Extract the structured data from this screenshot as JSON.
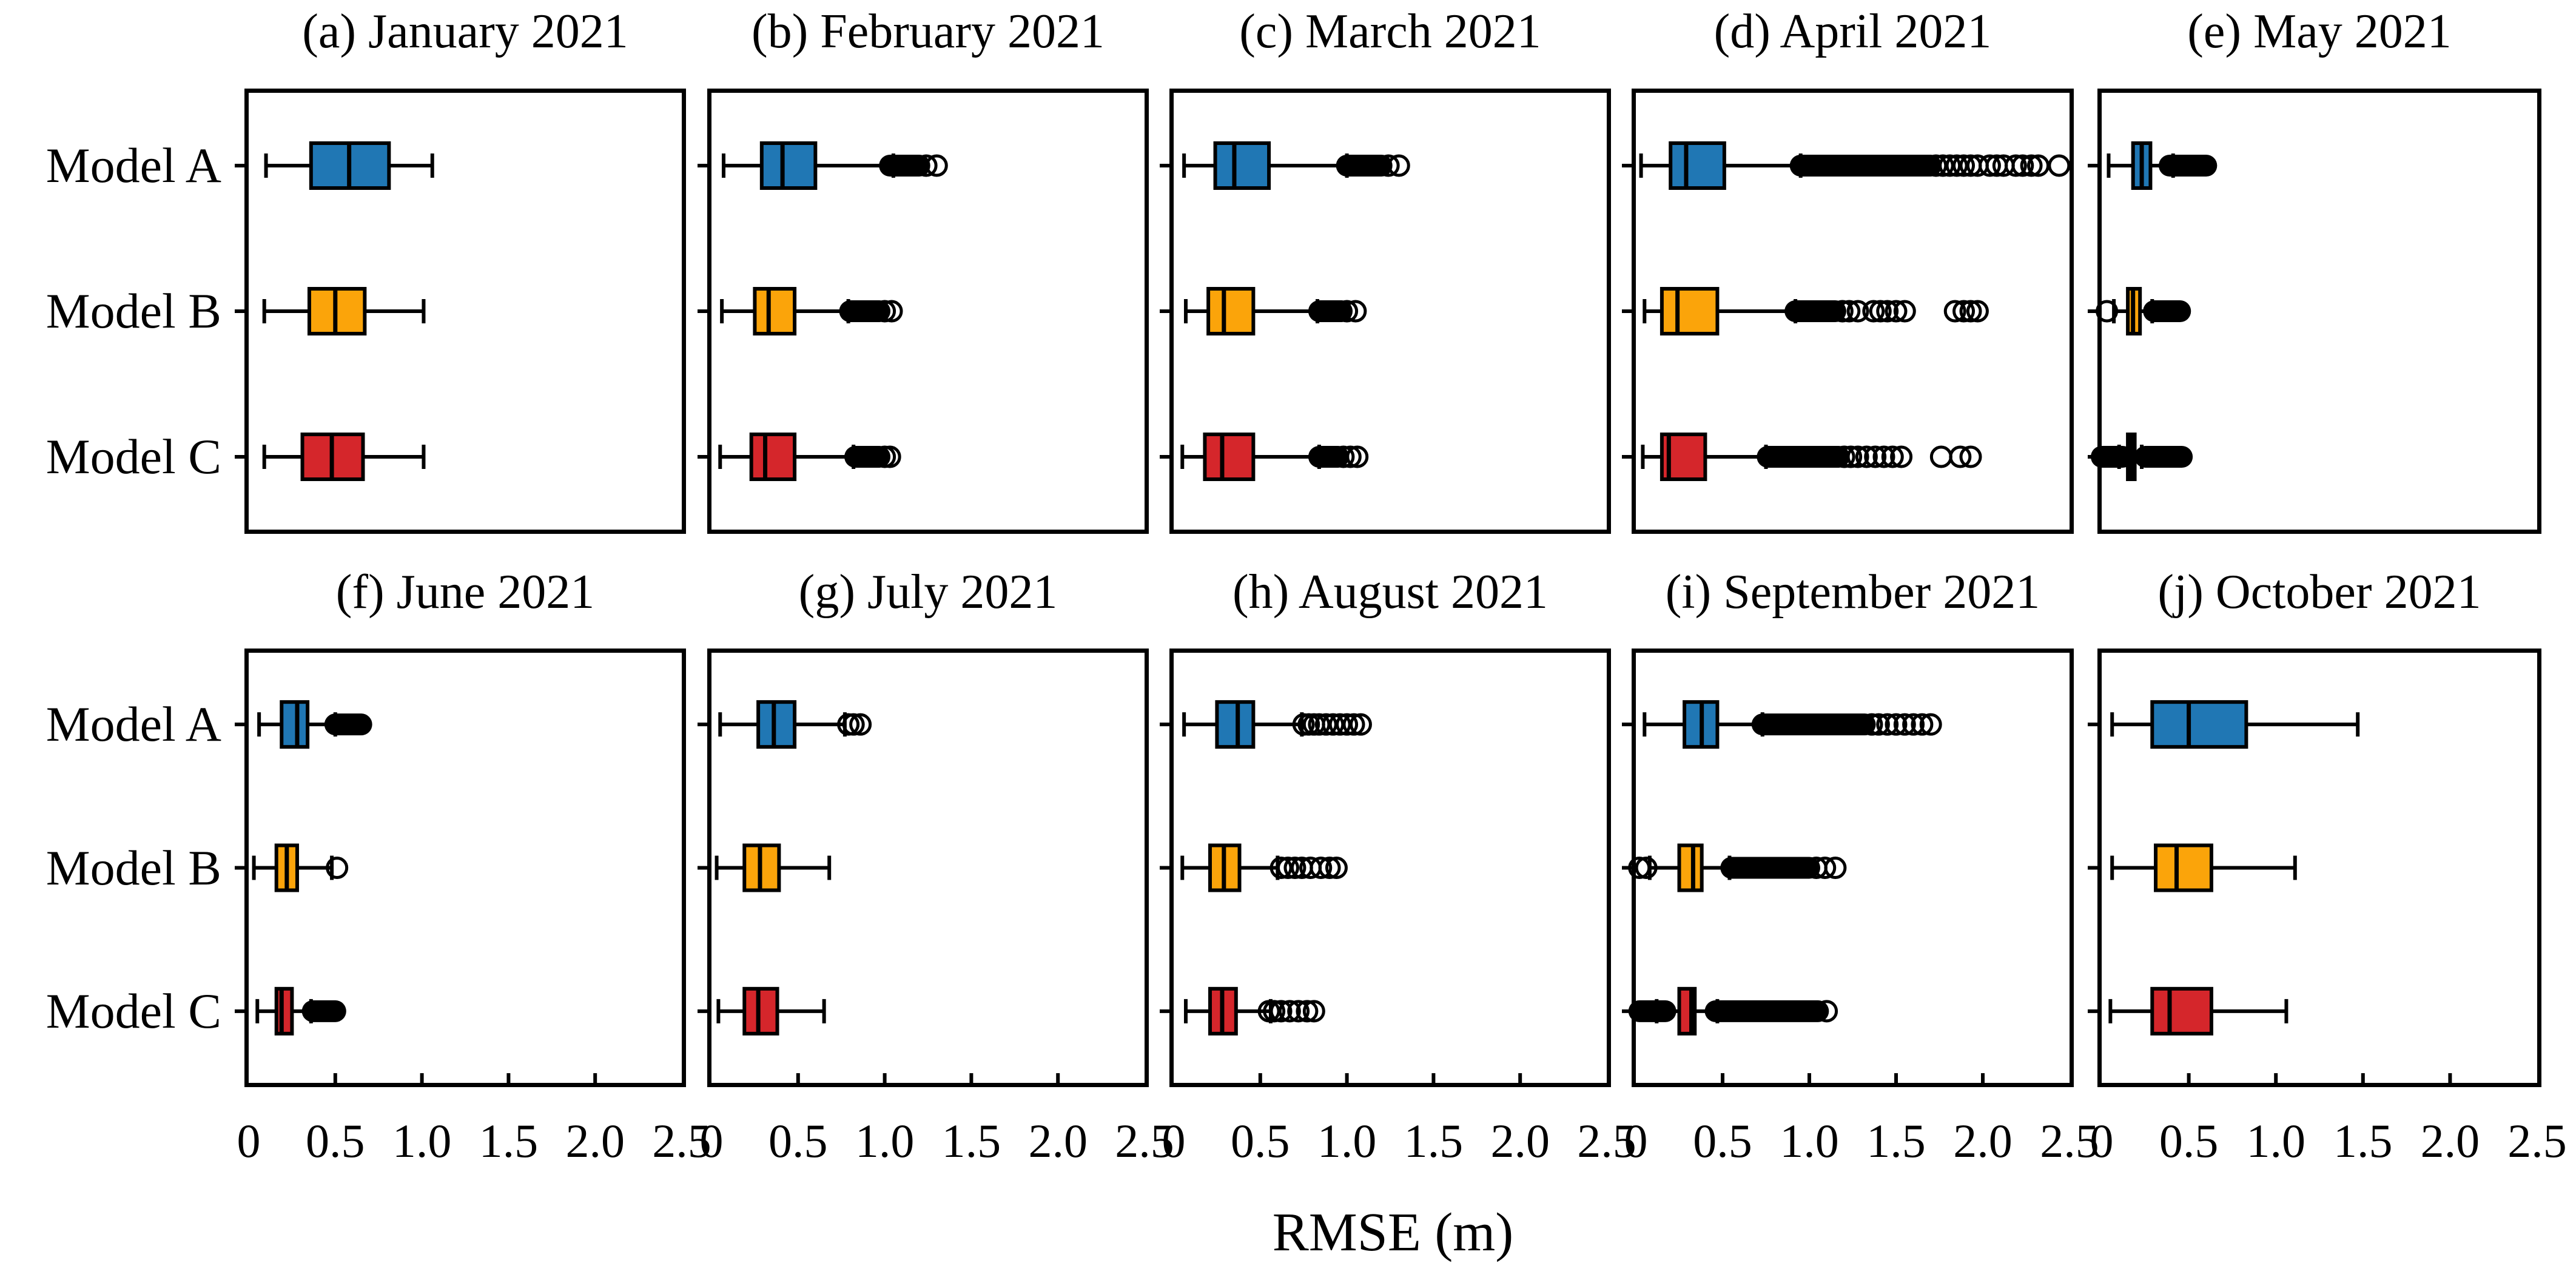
{
  "chart_data": {
    "type": "boxplot",
    "orientation": "horizontal",
    "xlabel": "RMSE (m)",
    "xlim": [
      0,
      2.5
    ],
    "xticks": [
      0,
      0.5,
      1.0,
      1.5,
      2.0,
      2.5
    ],
    "xtick_labels": [
      "0",
      "0.5",
      "1.0",
      "1.5",
      "2.0",
      "2.5"
    ],
    "categories": [
      "Model A",
      "Model B",
      "Model C"
    ],
    "colors": {
      "Model A": "#2077b4",
      "Model B": "#fba40a",
      "Model C": "#d5262b",
      "stroke": "#000000"
    },
    "grid": false,
    "legend": "none",
    "subplots": [
      {
        "panel": "a",
        "title": "(a) January 2021",
        "boxes": [
          {
            "model": "Model A",
            "whislo": 0.1,
            "q1": 0.36,
            "med": 0.58,
            "q3": 0.81,
            "whishi": 1.06,
            "dense": [],
            "outliers": []
          },
          {
            "model": "Model B",
            "whislo": 0.09,
            "q1": 0.35,
            "med": 0.5,
            "q3": 0.67,
            "whishi": 1.01,
            "dense": [],
            "outliers": []
          },
          {
            "model": "Model C",
            "whislo": 0.09,
            "q1": 0.31,
            "med": 0.48,
            "q3": 0.66,
            "whishi": 1.01,
            "dense": [],
            "outliers": []
          }
        ]
      },
      {
        "panel": "b",
        "title": "(b) February 2021",
        "boxes": [
          {
            "model": "Model A",
            "whislo": 0.07,
            "q1": 0.29,
            "med": 0.41,
            "q3": 0.6,
            "whishi": 1.05,
            "dense": [
              [
                1.03,
                1.2
              ]
            ],
            "outliers": [
              1.24,
              1.3
            ]
          },
          {
            "model": "Model B",
            "whislo": 0.06,
            "q1": 0.25,
            "med": 0.33,
            "q3": 0.48,
            "whishi": 0.79,
            "dense": [
              [
                0.8,
                0.97
              ]
            ],
            "outliers": [
              1.0,
              1.04
            ]
          },
          {
            "model": "Model C",
            "whislo": 0.05,
            "q1": 0.23,
            "med": 0.31,
            "q3": 0.48,
            "whishi": 0.82,
            "dense": [
              [
                0.83,
                0.97
              ]
            ],
            "outliers": [
              1.0,
              1.03
            ]
          }
        ]
      },
      {
        "panel": "c",
        "title": "(c) March 2021",
        "boxes": [
          {
            "model": "Model A",
            "whislo": 0.06,
            "q1": 0.24,
            "med": 0.35,
            "q3": 0.55,
            "whishi": 1.0,
            "dense": [
              [
                1.0,
                1.2
              ]
            ],
            "outliers": [
              1.24,
              1.3
            ]
          },
          {
            "model": "Model B",
            "whislo": 0.07,
            "q1": 0.2,
            "med": 0.29,
            "q3": 0.46,
            "whishi": 0.83,
            "dense": [
              [
                0.84,
                0.97
              ]
            ],
            "outliers": [
              1.0,
              1.05
            ]
          },
          {
            "model": "Model C",
            "whislo": 0.05,
            "q1": 0.18,
            "med": 0.28,
            "q3": 0.46,
            "whishi": 0.84,
            "dense": [
              [
                0.84,
                0.95
              ]
            ],
            "outliers": [
              0.98,
              1.02,
              1.06
            ]
          }
        ]
      },
      {
        "panel": "d",
        "title": "(d) April 2021",
        "boxes": [
          {
            "model": "Model A",
            "whislo": 0.03,
            "q1": 0.2,
            "med": 0.29,
            "q3": 0.51,
            "whishi": 0.95,
            "dense": [
              [
                0.95,
                1.7
              ]
            ],
            "outliers": [
              1.73,
              1.77,
              1.81,
              1.85,
              1.89,
              1.93,
              1.97,
              2.04,
              2.08,
              2.12,
              2.19,
              2.23,
              2.28,
              2.32,
              2.44
            ]
          },
          {
            "model": "Model B",
            "whislo": 0.05,
            "q1": 0.15,
            "med": 0.24,
            "q3": 0.47,
            "whishi": 0.92,
            "dense": [
              [
                0.92,
                1.15
              ]
            ],
            "outliers": [
              1.19,
              1.23,
              1.28,
              1.37,
              1.41,
              1.45,
              1.5,
              1.55,
              1.84,
              1.89,
              1.93,
              1.97
            ]
          },
          {
            "model": "Model C",
            "whislo": 0.04,
            "q1": 0.15,
            "med": 0.19,
            "q3": 0.4,
            "whishi": 0.75,
            "dense": [
              [
                0.76,
                1.17
              ]
            ],
            "outliers": [
              1.2,
              1.24,
              1.28,
              1.33,
              1.38,
              1.43,
              1.48,
              1.53,
              1.76,
              1.87,
              1.93
            ]
          }
        ]
      },
      {
        "panel": "e",
        "title": "(e) May 2021",
        "boxes": [
          {
            "model": "Model A",
            "whislo": 0.04,
            "q1": 0.18,
            "med": 0.23,
            "q3": 0.28,
            "whishi": 0.41,
            "dense": [
              [
                0.39,
                0.6
              ]
            ],
            "outliers": []
          },
          {
            "model": "Model B",
            "whislo": 0.07,
            "q1": 0.15,
            "med": 0.18,
            "q3": 0.22,
            "whishi": 0.29,
            "dense": [
              [
                0.3,
                0.45
              ]
            ],
            "outliers": [
              0.03
            ]
          },
          {
            "model": "Model C",
            "whislo": 0.1,
            "q1": 0.15,
            "med": 0.17,
            "q3": 0.19,
            "whishi": 0.23,
            "dense": [
              [
                0.0,
                0.12
              ],
              [
                0.25,
                0.46
              ]
            ],
            "outliers": []
          }
        ]
      },
      {
        "panel": "f",
        "title": "(f) June 2021",
        "boxes": [
          {
            "model": "Model A",
            "whislo": 0.06,
            "q1": 0.19,
            "med": 0.28,
            "q3": 0.34,
            "whishi": 0.5,
            "dense": [
              [
                0.5,
                0.65
              ]
            ],
            "outliers": []
          },
          {
            "model": "Model B",
            "whislo": 0.03,
            "q1": 0.16,
            "med": 0.22,
            "q3": 0.28,
            "whishi": 0.48,
            "dense": [],
            "outliers": [
              0.51
            ]
          },
          {
            "model": "Model C",
            "whislo": 0.05,
            "q1": 0.16,
            "med": 0.19,
            "q3": 0.25,
            "whishi": 0.36,
            "dense": [
              [
                0.37,
                0.5
              ]
            ],
            "outliers": []
          }
        ]
      },
      {
        "panel": "g",
        "title": "(g) July 2021",
        "boxes": [
          {
            "model": "Model A",
            "whislo": 0.05,
            "q1": 0.27,
            "med": 0.36,
            "q3": 0.48,
            "whishi": 0.77,
            "dense": [],
            "outliers": [
              0.79,
              0.82,
              0.86
            ]
          },
          {
            "model": "Model B",
            "whislo": 0.03,
            "q1": 0.19,
            "med": 0.28,
            "q3": 0.39,
            "whishi": 0.68,
            "dense": [],
            "outliers": []
          },
          {
            "model": "Model C",
            "whislo": 0.04,
            "q1": 0.19,
            "med": 0.27,
            "q3": 0.38,
            "whishi": 0.65,
            "dense": [],
            "outliers": []
          }
        ]
      },
      {
        "panel": "h",
        "title": "(h) August 2021",
        "boxes": [
          {
            "model": "Model A",
            "whislo": 0.06,
            "q1": 0.25,
            "med": 0.37,
            "q3": 0.46,
            "whishi": 0.74,
            "dense": [],
            "outliers": [
              0.75,
              0.78,
              0.81,
              0.84,
              0.88,
              0.92,
              0.96,
              1.0,
              1.04,
              1.08
            ]
          },
          {
            "model": "Model B",
            "whislo": 0.05,
            "q1": 0.21,
            "med": 0.29,
            "q3": 0.38,
            "whishi": 0.6,
            "dense": [],
            "outliers": [
              0.62,
              0.66,
              0.7,
              0.74,
              0.79,
              0.85,
              0.9,
              0.94
            ]
          },
          {
            "model": "Model C",
            "whislo": 0.07,
            "q1": 0.21,
            "med": 0.28,
            "q3": 0.36,
            "whishi": 0.56,
            "dense": [],
            "outliers": [
              0.55,
              0.58,
              0.62,
              0.67,
              0.72,
              0.77,
              0.81
            ]
          }
        ]
      },
      {
        "panel": "i",
        "title": "(i) September 2021",
        "boxes": [
          {
            "model": "Model A",
            "whislo": 0.05,
            "q1": 0.28,
            "med": 0.38,
            "q3": 0.47,
            "whishi": 0.73,
            "dense": [
              [
                0.73,
                1.32
              ]
            ],
            "outliers": [
              1.36,
              1.4,
              1.45,
              1.5,
              1.55,
              1.6,
              1.65,
              1.7
            ]
          },
          {
            "model": "Model B",
            "whislo": 0.08,
            "q1": 0.25,
            "med": 0.33,
            "q3": 0.38,
            "whishi": 0.54,
            "dense": [
              [
                0.55,
                1.0
              ]
            ],
            "outliers": [
              0.02,
              0.06,
              1.04,
              1.09,
              1.15
            ]
          },
          {
            "model": "Model C",
            "whislo": 0.12,
            "q1": 0.25,
            "med": 0.32,
            "q3": 0.34,
            "whishi": 0.47,
            "dense": [
              [
                0.02,
                0.17
              ],
              [
                0.46,
                1.05
              ]
            ],
            "outliers": [
              1.1
            ]
          }
        ]
      },
      {
        "panel": "j",
        "title": "(j) October 2021",
        "boxes": [
          {
            "model": "Model A",
            "whislo": 0.06,
            "q1": 0.29,
            "med": 0.5,
            "q3": 0.83,
            "whishi": 1.47,
            "dense": [],
            "outliers": []
          },
          {
            "model": "Model B",
            "whislo": 0.06,
            "q1": 0.31,
            "med": 0.43,
            "q3": 0.63,
            "whishi": 1.11,
            "dense": [],
            "outliers": []
          },
          {
            "model": "Model C",
            "whislo": 0.05,
            "q1": 0.29,
            "med": 0.39,
            "q3": 0.63,
            "whishi": 1.06,
            "dense": [],
            "outliers": []
          }
        ]
      }
    ]
  }
}
